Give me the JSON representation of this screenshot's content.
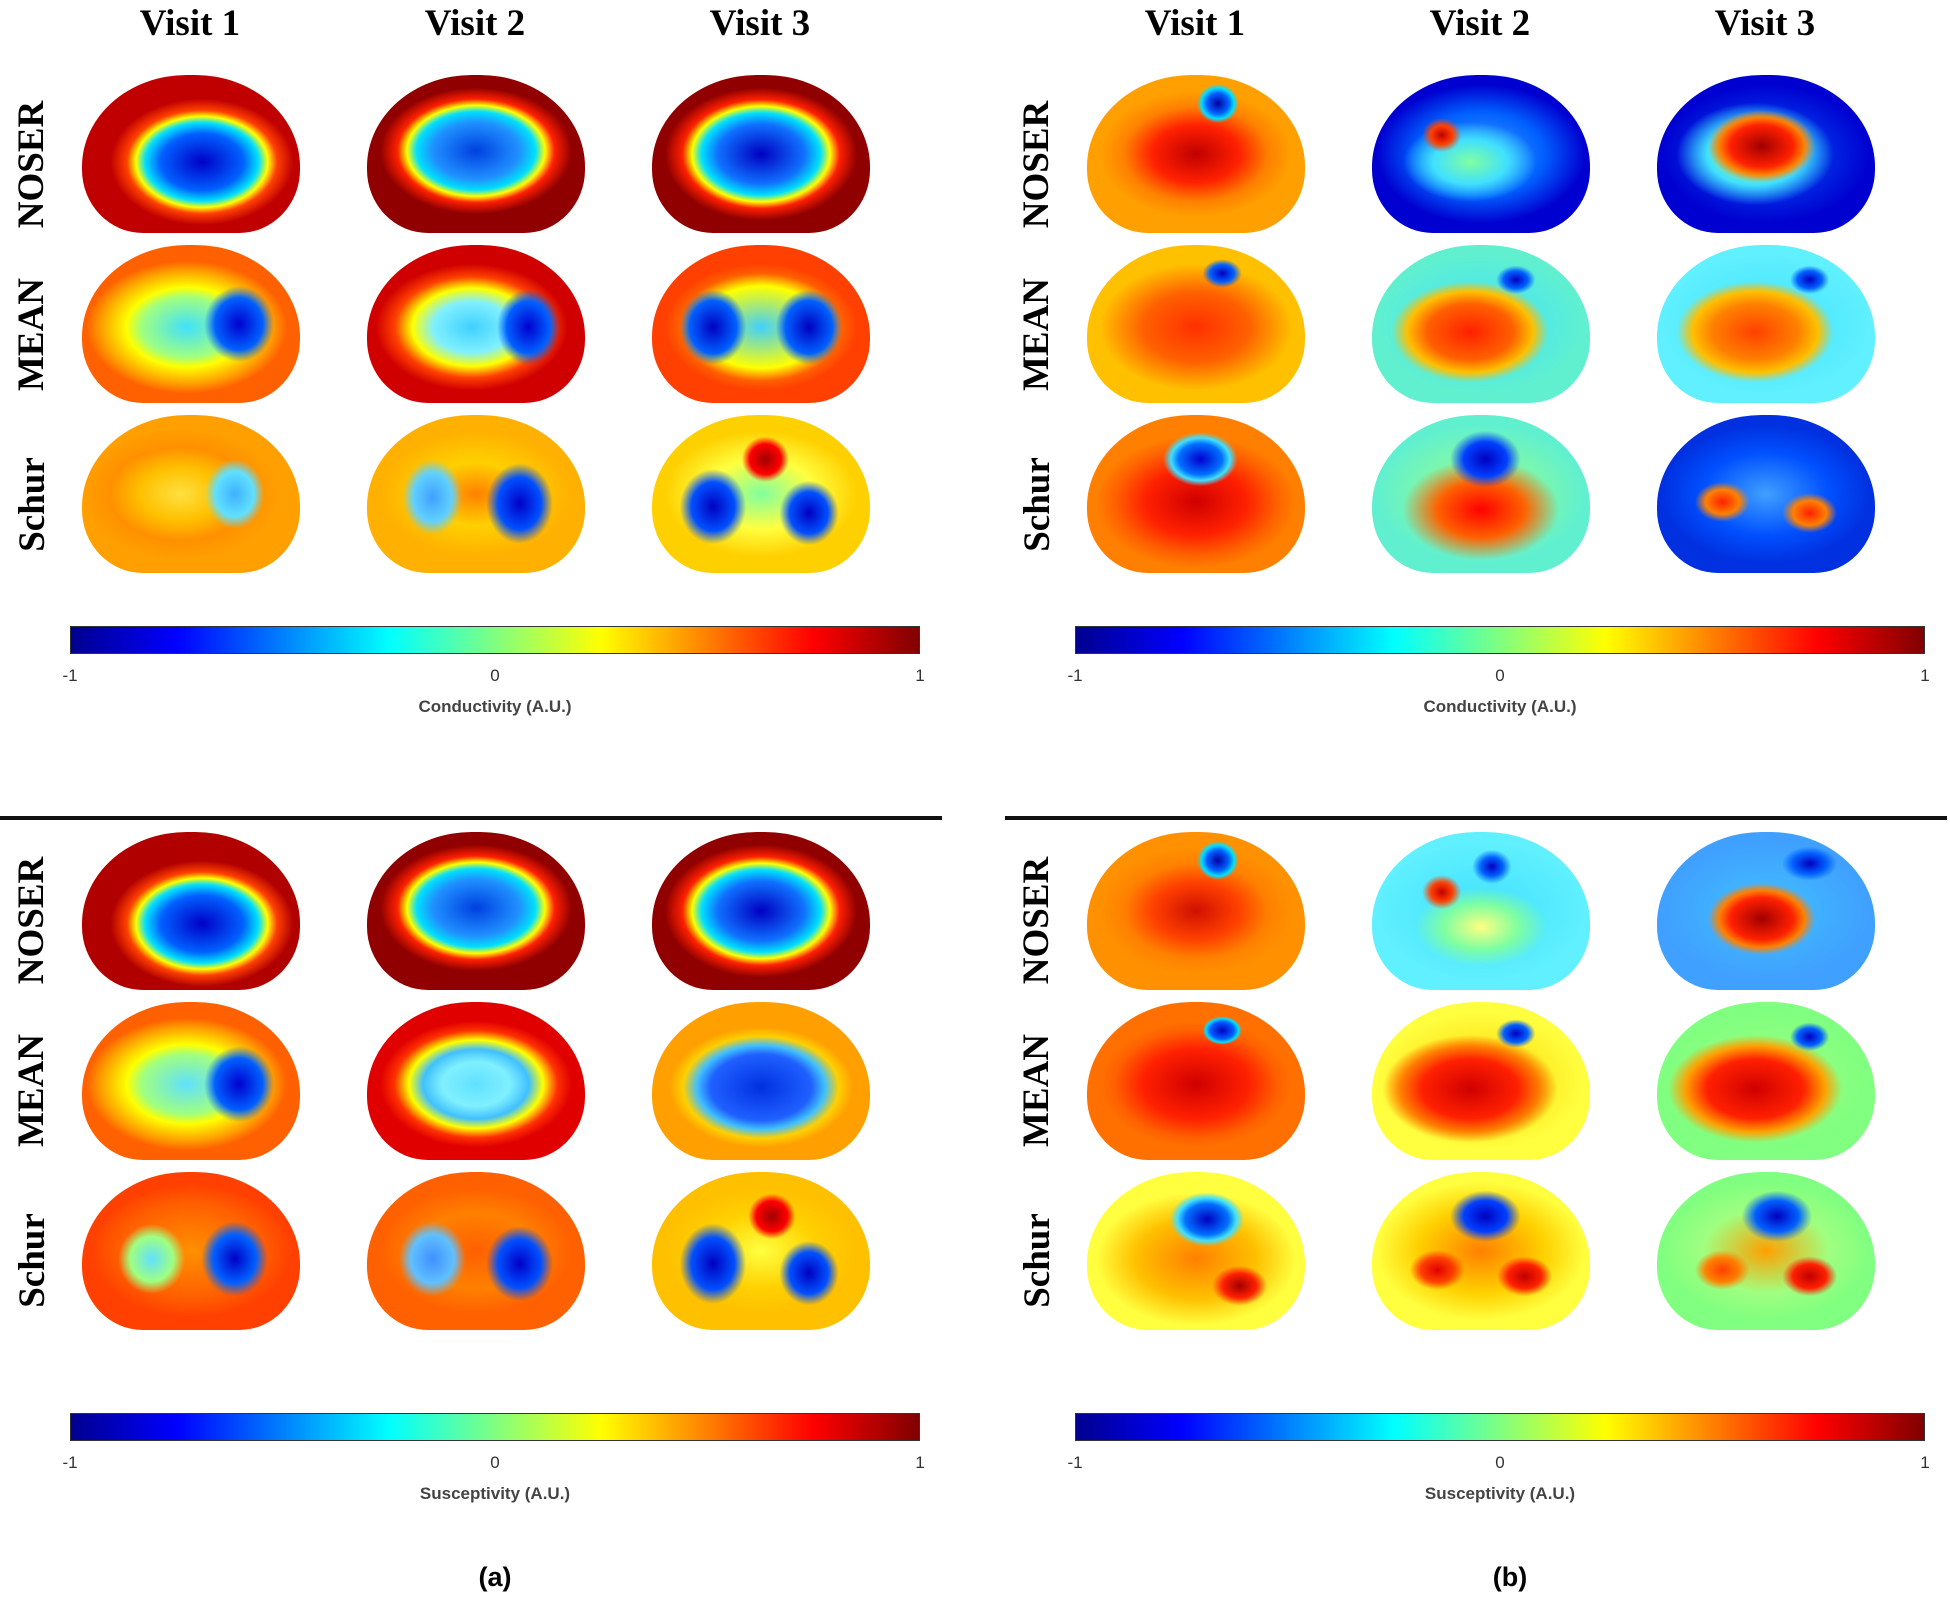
{
  "column_headers": [
    "Visit 1",
    "Visit 2",
    "Visit 3"
  ],
  "row_labels": [
    "NOSER",
    "MEAN",
    "Schur"
  ],
  "colorbar": {
    "min_label": "-1",
    "mid_label": "0",
    "max_label": "1",
    "top_label": "Conductivity (A.U.)",
    "bottom_label": "Susceptivity (A.U.)"
  },
  "panels": [
    {
      "label": "(a)"
    },
    {
      "label": "(b)"
    }
  ],
  "colors": {
    "dark_red": "#800000",
    "red": "#ff0000",
    "orange": "#ff8000",
    "yellow": "#ffff00",
    "green": "#80ff80",
    "cyan": "#00ffff",
    "light_blue": "#0080ff",
    "blue": "#0000ff",
    "dark_blue": "#00008f"
  }
}
